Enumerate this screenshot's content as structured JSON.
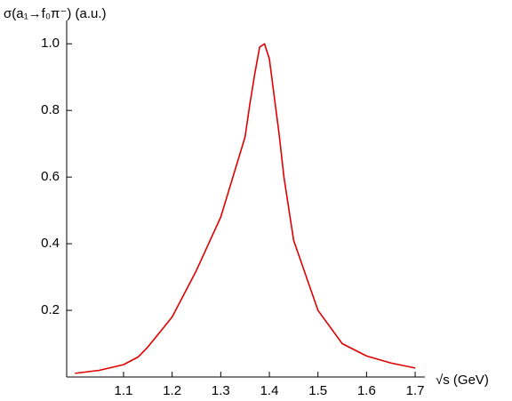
{
  "chart_data": {
    "type": "line",
    "title": "σ(a₁→f₀π⁻) (a.u.)",
    "x_label": "√s (GeV)",
    "x": [
      1.0,
      1.05,
      1.1,
      1.13,
      1.15,
      1.2,
      1.25,
      1.3,
      1.35,
      1.36,
      1.37,
      1.38,
      1.39,
      1.4,
      1.42,
      1.43,
      1.45,
      1.5,
      1.55,
      1.6,
      1.65,
      1.7
    ],
    "series": [
      {
        "name": "σ",
        "color": "#e00000",
        "values": [
          0.011,
          0.02,
          0.037,
          0.06,
          0.09,
          0.18,
          0.32,
          0.48,
          0.72,
          0.82,
          0.91,
          0.99,
          1.0,
          0.955,
          0.73,
          0.6,
          0.41,
          0.2,
          0.1,
          0.063,
          0.042,
          0.027
        ]
      }
    ],
    "xlim": [
      0.983,
      1.72
    ],
    "ylim": [
      0,
      1.07
    ],
    "xticks": [
      1.1,
      1.2,
      1.3,
      1.4,
      1.5,
      1.6,
      1.7
    ],
    "yticks": [
      0.2,
      0.4,
      0.6,
      0.8,
      {
        "value": 1.0,
        "label": "1.0"
      }
    ]
  }
}
